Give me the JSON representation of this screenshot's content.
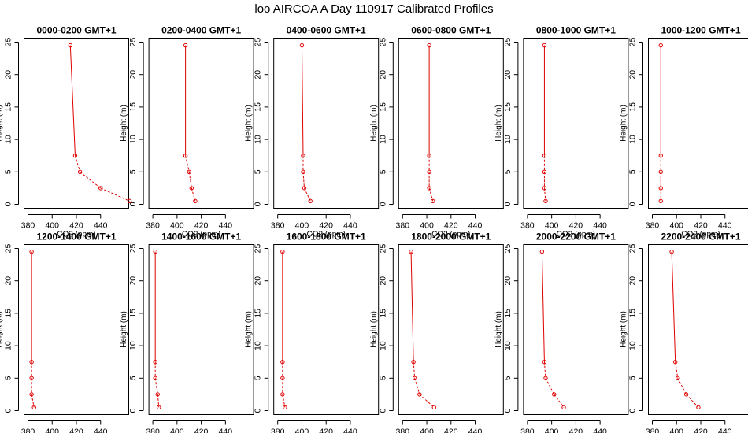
{
  "chart_data": {
    "type": "line",
    "title": "loo AIRCOA A  Day 110917  Calibrated Profiles",
    "xlabel": "CO2 (ppm)",
    "ylabel": "Height (m)",
    "xlim": [
      380,
      460
    ],
    "ylim": [
      0,
      25
    ],
    "xticks": [
      380,
      400,
      420,
      440
    ],
    "yticks": [
      0,
      5,
      10,
      15,
      20,
      25
    ],
    "heights": [
      24.5,
      7.5,
      5,
      2.5,
      0.5
    ],
    "color": "#e00000",
    "panels": [
      {
        "title": "0000-0200 GMT+1",
        "co2": [
          415,
          419,
          423,
          440,
          464
        ]
      },
      {
        "title": "0200-0400 GMT+1",
        "co2": [
          407,
          407,
          410,
          412,
          415
        ]
      },
      {
        "title": "0400-0600 GMT+1",
        "co2": [
          400,
          401,
          401,
          402,
          407
        ]
      },
      {
        "title": "0600-0800 GMT+1",
        "co2": [
          402,
          402,
          402,
          402,
          405
        ]
      },
      {
        "title": "0800-1000 GMT+1",
        "co2": [
          394,
          394,
          394,
          394,
          395
        ]
      },
      {
        "title": "1000-1200 GMT+1",
        "co2": [
          387,
          387,
          387,
          387,
          387
        ]
      },
      {
        "title": "1200-1400 GMT+1",
        "co2": [
          383,
          383,
          383,
          383,
          385
        ]
      },
      {
        "title": "1400-1600 GMT+1",
        "co2": [
          382,
          382,
          382,
          384,
          385
        ]
      },
      {
        "title": "1600-1800 GMT+1",
        "co2": [
          384,
          384,
          384,
          384,
          386
        ]
      },
      {
        "title": "1800-2000 GMT+1",
        "co2": [
          387,
          389,
          390,
          394,
          406
        ]
      },
      {
        "title": "2000-2200 GMT+1",
        "co2": [
          392,
          394,
          395,
          402,
          410
        ]
      },
      {
        "title": "2200-2400 GMT+1",
        "co2": [
          396,
          399,
          401,
          408,
          418
        ]
      }
    ]
  }
}
